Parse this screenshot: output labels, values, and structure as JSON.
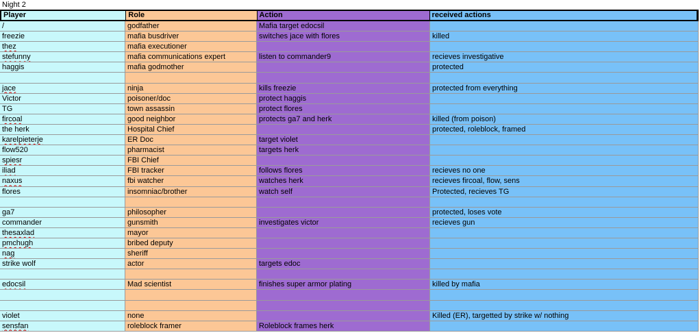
{
  "title": "Night 2",
  "colors": {
    "player": "#c8f8fb",
    "role": "#fcc796",
    "action": "#9e6bd1",
    "received": "#78c1f8"
  },
  "headers": [
    "Player",
    "Role",
    "Action",
    "received actions"
  ],
  "rows": [
    [
      "/",
      "godfather",
      "Mafia target edocsil",
      ""
    ],
    [
      "freezie",
      "mafia busdriver",
      "switches jace with flores",
      "killed"
    ],
    [
      "thez",
      "mafia executioner",
      "",
      ""
    ],
    [
      "stefunny",
      "mafia communications expert",
      "listen to commander9",
      "recieves investigative"
    ],
    [
      "haggis",
      "mafia godmother",
      "",
      "protected"
    ],
    [
      "",
      "",
      "",
      ""
    ],
    [
      "jace",
      "ninja",
      "kills freezie",
      "protected from everything"
    ],
    [
      "Victor",
      "poisoner/doc",
      "protect haggis",
      ""
    ],
    [
      "TG",
      "town assassin",
      "protect flores",
      ""
    ],
    [
      "fircoal",
      "good neighbor",
      "protects ga7 and herk",
      "killed (from poison)"
    ],
    [
      "the herk",
      "Hospital Chief",
      "",
      "protected, roleblock, framed"
    ],
    [
      "karelpieterje",
      "ER Doc",
      "target violet",
      ""
    ],
    [
      "flow520",
      "pharmacist",
      "targets herk",
      ""
    ],
    [
      "spiesr",
      "FBI Chief",
      "",
      ""
    ],
    [
      "iliad",
      "FBI tracker",
      "follows flores",
      "recieves no one"
    ],
    [
      "naxus",
      "fbi watcher",
      "watches herk",
      "recieves fircoal, flow, sens"
    ],
    [
      "flores",
      "insomniac/brother",
      "watch self",
      "Protected, recieves TG"
    ],
    [
      "",
      "",
      "",
      ""
    ],
    [
      "ga7",
      "philosopher",
      "",
      "protected, loses vote"
    ],
    [
      "commander",
      "gunsmith",
      "investigates victor",
      "recieves gun"
    ],
    [
      "thesaxlad",
      "mayor",
      "",
      ""
    ],
    [
      "pmchugh",
      "bribed deputy",
      "",
      ""
    ],
    [
      "nag",
      "sheriff",
      "",
      ""
    ],
    [
      "strike wolf",
      "actor",
      "targets edoc",
      ""
    ],
    [
      "",
      "",
      "",
      ""
    ],
    [
      "edocsil",
      "Mad scientist",
      "finishes super armor plating",
      "killed by mafia"
    ],
    [
      "",
      "",
      "",
      ""
    ],
    [
      "",
      "",
      "",
      ""
    ],
    [
      "violet",
      "none",
      "",
      "Killed (ER), targetted by strike w/ nothing"
    ],
    [
      "sensfan",
      "roleblock framer",
      "Roleblock frames herk",
      ""
    ]
  ]
}
